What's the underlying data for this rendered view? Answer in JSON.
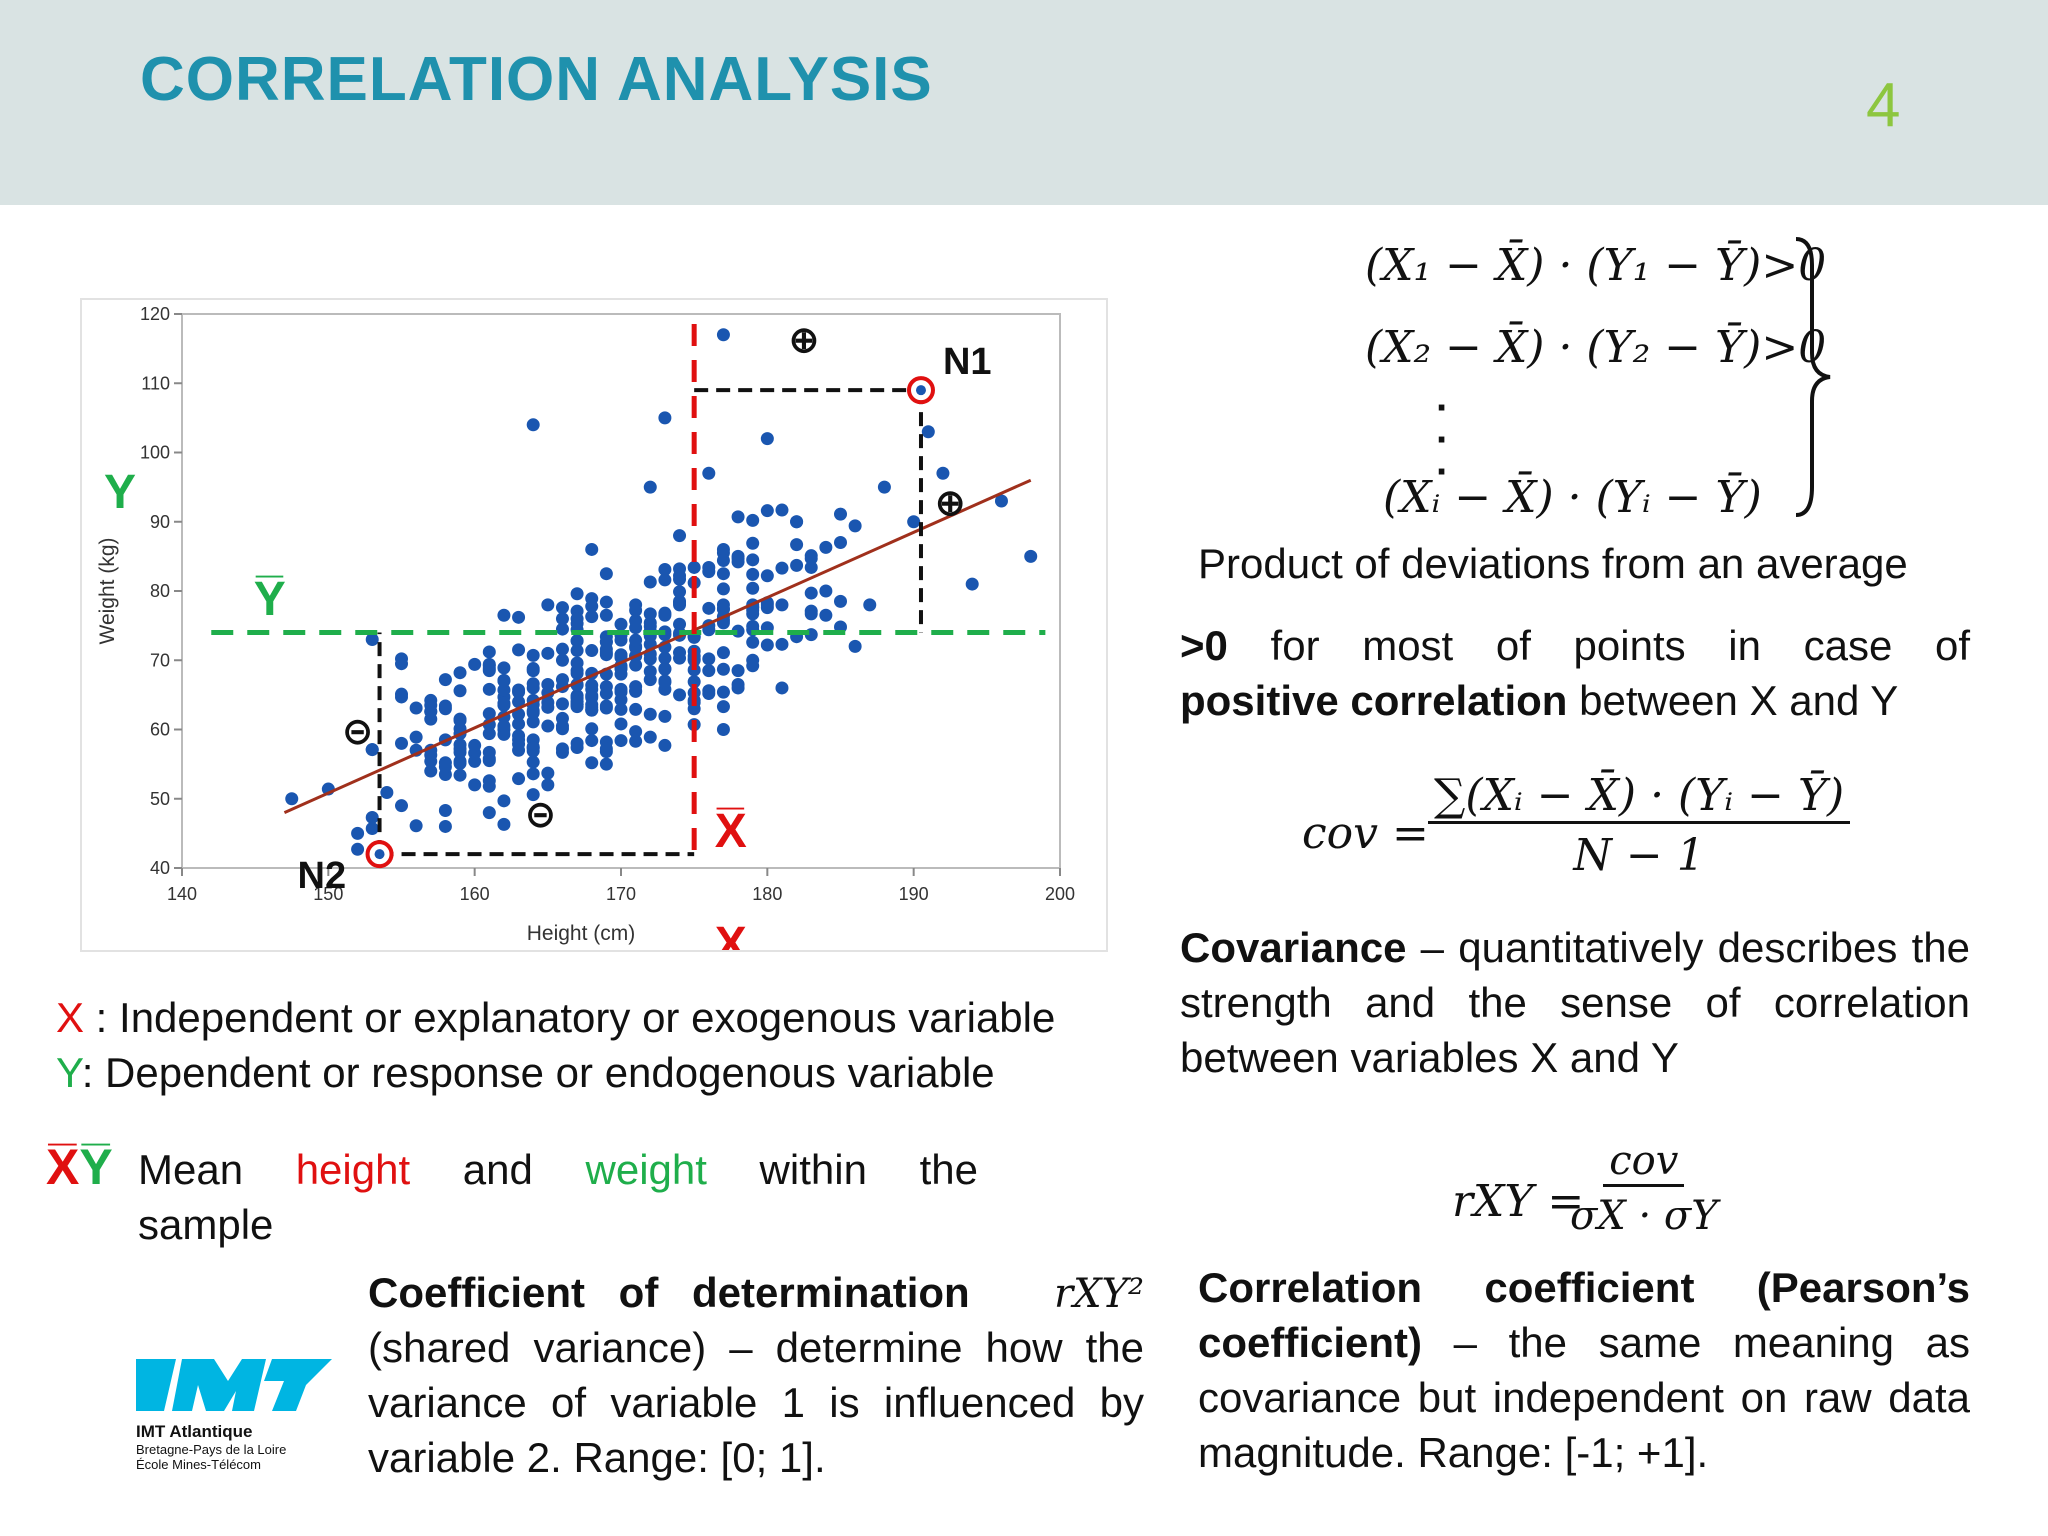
{
  "header": {
    "title": "CORRELATION ANALYSIS",
    "page_number": "4"
  },
  "chart_data": {
    "type": "scatter",
    "xlabel": "Height (cm)",
    "ylabel": "Weight (kg)",
    "xlim": [
      140,
      200
    ],
    "ylim": [
      40,
      120
    ],
    "x_ticks": [
      140,
      150,
      160,
      170,
      180,
      190,
      200
    ],
    "y_ticks": [
      40,
      50,
      60,
      70,
      80,
      90,
      100,
      110,
      120
    ],
    "mean_x": 175,
    "mean_y": 74,
    "regression_line": {
      "from": [
        147,
        48
      ],
      "to": [
        198,
        96
      ]
    },
    "highlight_points": [
      {
        "label": "N1",
        "x": 190.5,
        "y": 109
      },
      {
        "label": "N2",
        "x": 153.5,
        "y": 42
      }
    ],
    "annotations": {
      "y_label": "Y",
      "y_bar_label": "Y̅",
      "x_label": "X",
      "x_bar_label": "X̅",
      "plus_sign": "⊕",
      "minus_sign": "⊝"
    },
    "seed_points": [
      [
        147.5,
        50
      ],
      [
        152,
        45
      ],
      [
        153,
        73
      ],
      [
        155,
        58
      ],
      [
        158,
        63
      ],
      [
        160,
        52
      ],
      [
        161,
        48
      ],
      [
        162,
        60
      ],
      [
        164,
        104
      ],
      [
        166,
        70
      ],
      [
        168,
        86
      ],
      [
        170,
        68
      ],
      [
        171,
        78
      ],
      [
        172,
        95
      ],
      [
        173,
        105
      ],
      [
        174,
        88
      ],
      [
        176,
        97
      ],
      [
        177,
        117
      ],
      [
        178,
        85
      ],
      [
        179,
        78
      ],
      [
        180,
        102
      ],
      [
        182,
        90
      ],
      [
        184,
        80
      ],
      [
        185,
        87
      ],
      [
        186,
        72
      ],
      [
        188,
        95
      ],
      [
        190,
        90
      ],
      [
        191,
        103
      ],
      [
        192,
        97
      ],
      [
        194,
        81
      ],
      [
        196,
        93
      ],
      [
        198,
        85
      ],
      [
        181,
        66
      ],
      [
        179,
        70
      ],
      [
        163,
        57
      ],
      [
        167,
        64
      ],
      [
        169,
        55
      ],
      [
        175,
        63
      ],
      [
        177,
        60
      ],
      [
        157,
        54
      ]
    ]
  },
  "formulas": {
    "line1": "(X₁ − X̄) · (Y₁ − Ȳ)>0",
    "line2": "(X₂ − X̄) · (Y₂ − Ȳ)>0",
    "line3": "(Xᵢ − X̄) · (Yᵢ − Ȳ)",
    "cov_lhs": "cov =",
    "cov_num": "∑(Xᵢ − X̄) · (Yᵢ − Ȳ)",
    "cov_den": "N − 1",
    "r_lhs": "rXY =",
    "r_num": "cov",
    "r_den": "σX · σY"
  },
  "text": {
    "product_caption": "Product of deviations from an average",
    "gt0_bold": ">0",
    "gt0_rest": " for most of points in case of",
    "pos_corr_bold": "positive correlation",
    "pos_corr_rest": " between X and Y",
    "cov_bold": "Covariance",
    "cov_rest": " – quantitatively describes the strength and the sense of correlation between variables X and Y",
    "x_def_letter": "X",
    "x_def_rest": " : Independent or explanatory or exogenous variable",
    "y_def_letter": "Y",
    "y_def_rest": ": Dependent or response or endogenous variable",
    "mean_x_symbol": "X̅",
    "mean_y_symbol": "Y̅",
    "mean_word1": "Mean",
    "mean_height": "height",
    "mean_and": "and",
    "mean_weight": "weight",
    "mean_within": "within",
    "mean_the": "the",
    "mean_sample": "sample",
    "coef_bold": "Coefficient of determination",
    "coef_symbol": "rXY²",
    "coef_rest": "(shared variance) – determine how the variance of variable 1 is influenced by variable 2.  Range: [0; 1].",
    "pearson_bold": "Correlation coefficient (Pearson’s coefficient)",
    "pearson_rest": " – the same meaning as covariance but independent on raw data magnitude. Range: [-1; +1]."
  },
  "logo": {
    "name": "IMT Atlantique",
    "line2": "Bretagne-Pays de la Loire",
    "line3": "École Mines-Télécom",
    "color": "#00b5e2"
  }
}
